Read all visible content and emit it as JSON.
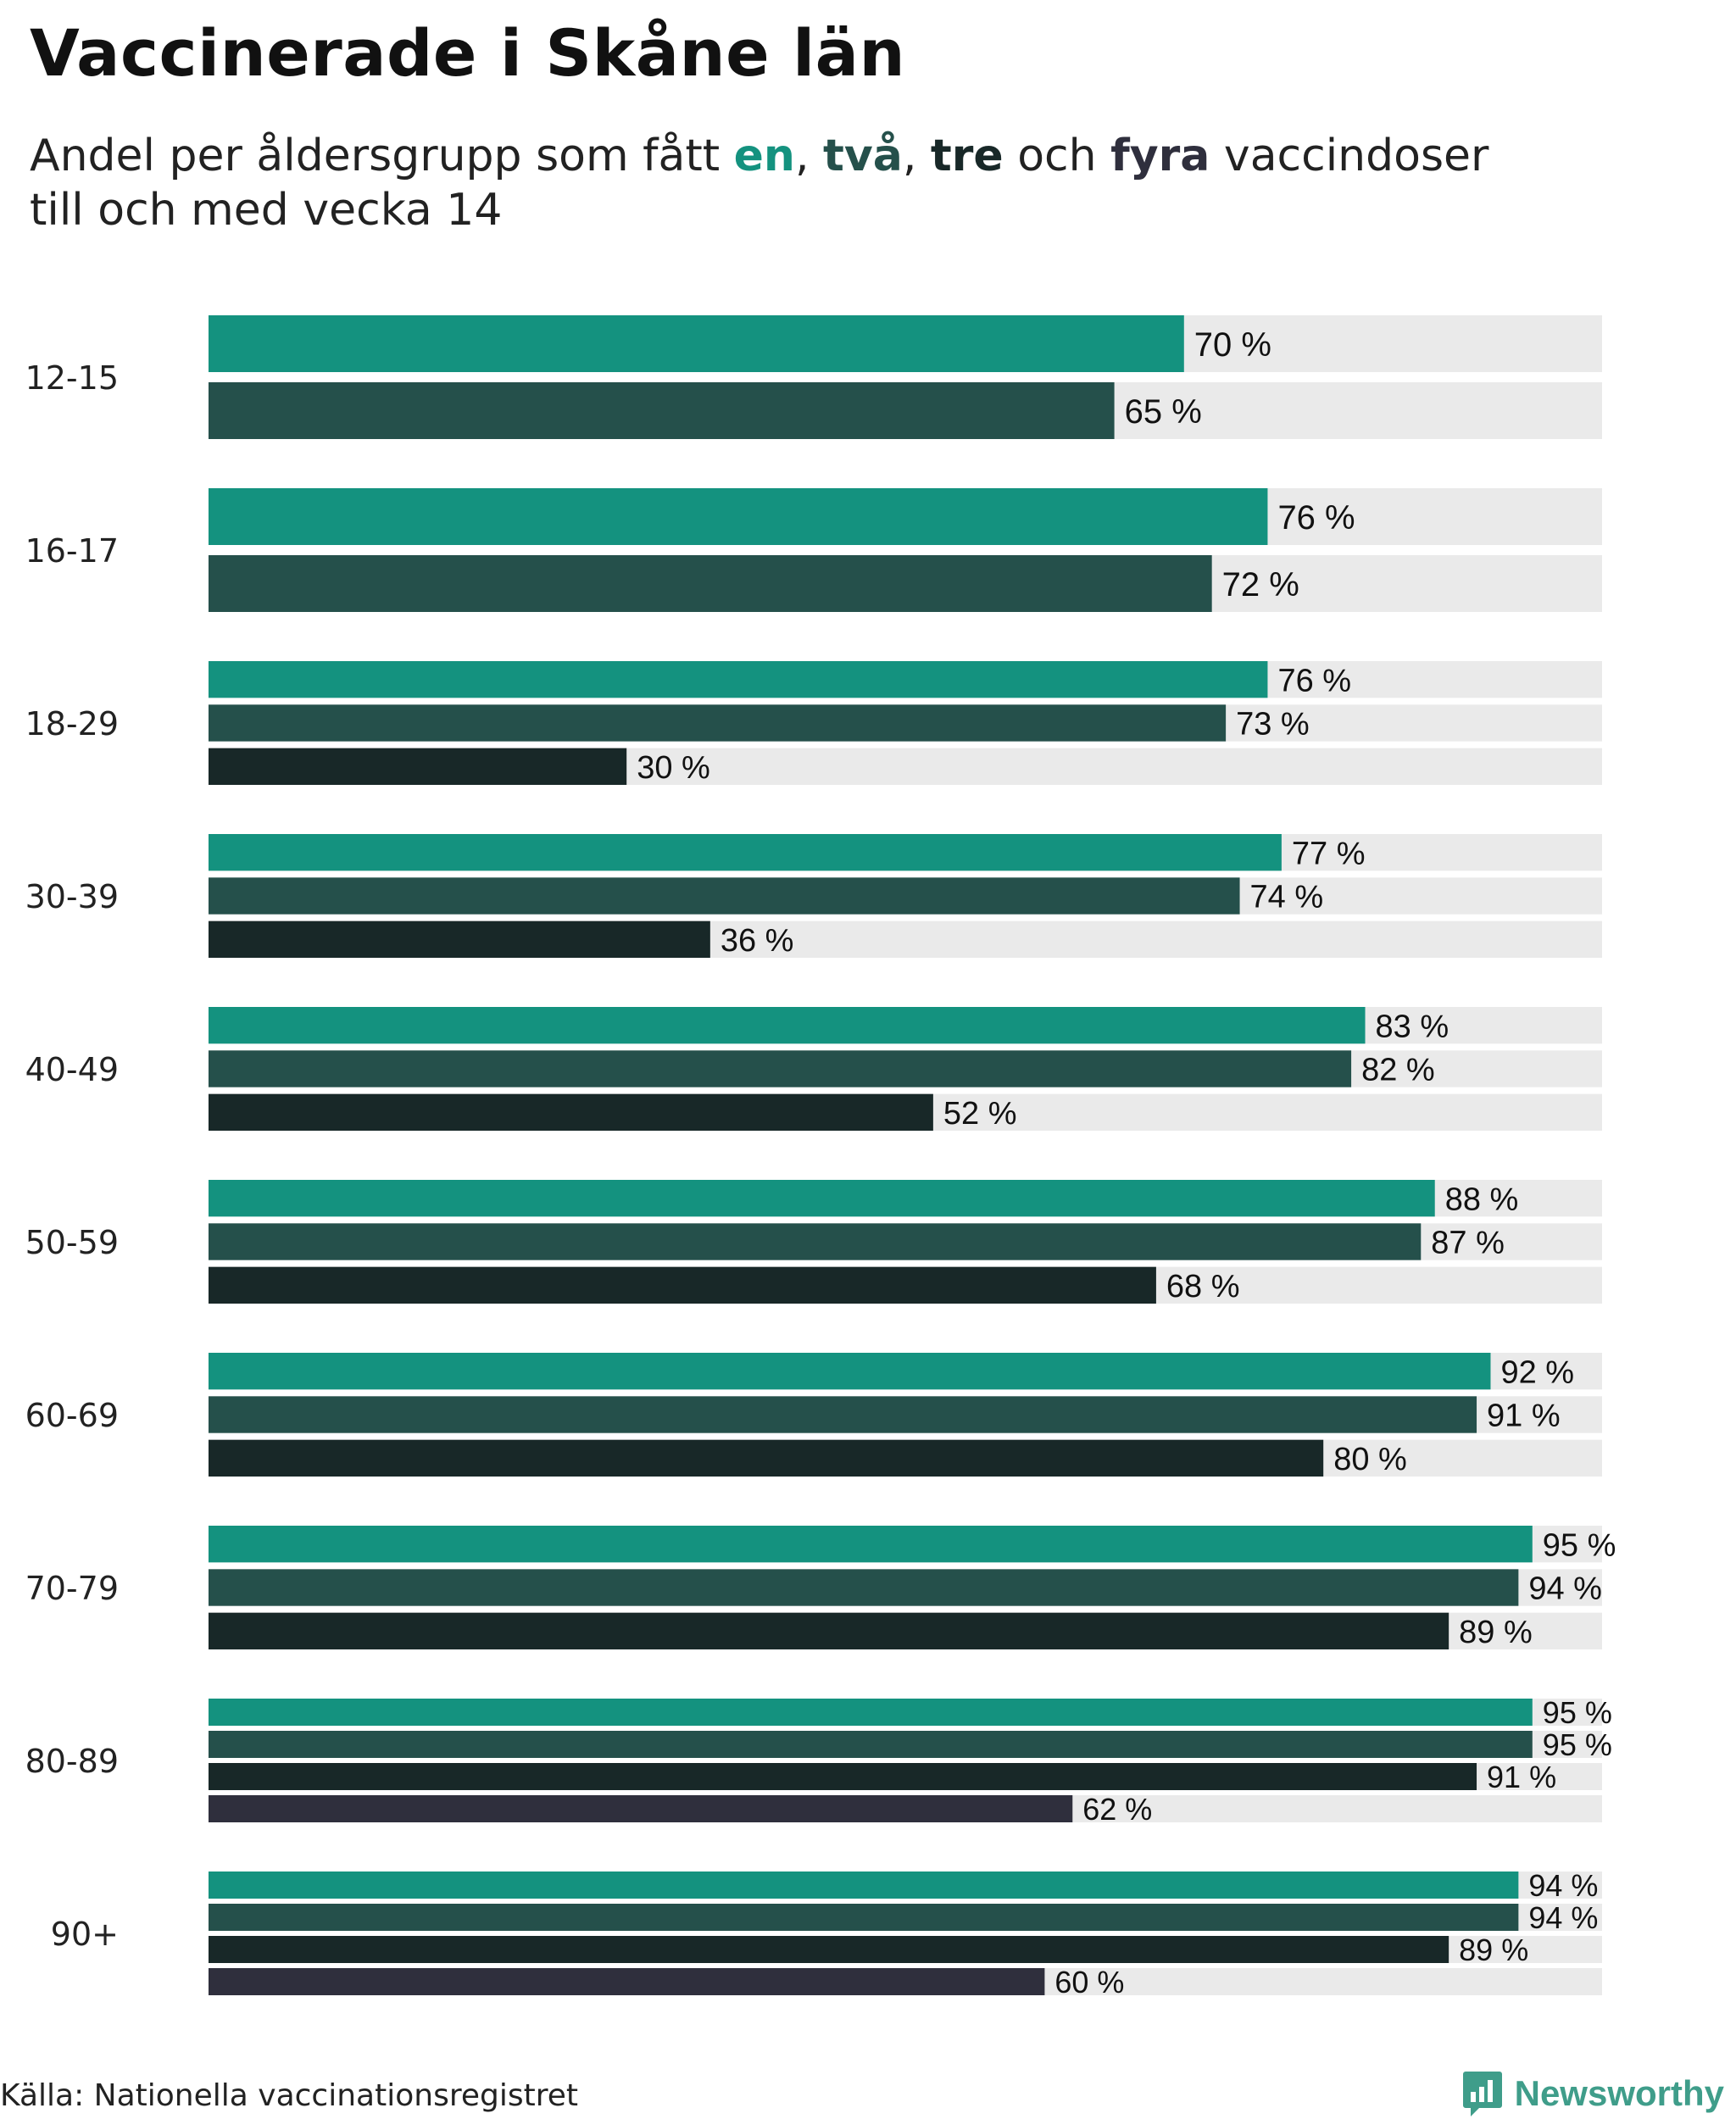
{
  "header": {
    "title": "Vaccinerade i Skåne län",
    "subtitle_prefix": "Andel per åldersgrupp som fått ",
    "subtitle_one": "en",
    "subtitle_sep1": ", ",
    "subtitle_two": "två",
    "subtitle_sep2": ", ",
    "subtitle_three": "tre",
    "subtitle_och": " och ",
    "subtitle_four": "fyra",
    "subtitle_suffix": " vaccindoser",
    "subtitle_line2": "till och med vecka 14"
  },
  "footer": {
    "source": "Källa: Nationella vaccinationsregistret",
    "brand": "Newsworthy"
  },
  "colors": {
    "one_dose": "#14927f",
    "two_doses": "#25504b",
    "three_doses": "#182828",
    "four_doses": "#2f2f3d",
    "track": "#eaeaea",
    "brand": "#3f9d8a"
  },
  "chart_data": {
    "type": "bar",
    "orientation": "horizontal",
    "title": "Vaccinerade i Skåne län",
    "xlim": [
      0,
      100
    ],
    "unit": "%",
    "value_suffix": " %",
    "grid": false,
    "categories": [
      "12-15",
      "16-17",
      "18-29",
      "30-39",
      "40-49",
      "50-59",
      "60-69",
      "70-79",
      "80-89",
      "90+"
    ],
    "series": [
      {
        "name": "en",
        "values": [
          70,
          76,
          76,
          77,
          83,
          88,
          92,
          95,
          95,
          94
        ]
      },
      {
        "name": "två",
        "values": [
          65,
          72,
          73,
          74,
          82,
          87,
          91,
          94,
          95,
          94
        ]
      },
      {
        "name": "tre",
        "values": [
          null,
          null,
          30,
          36,
          52,
          68,
          80,
          89,
          91,
          89
        ]
      },
      {
        "name": "fyra",
        "values": [
          null,
          null,
          null,
          null,
          null,
          null,
          null,
          null,
          62,
          60
        ]
      }
    ]
  }
}
